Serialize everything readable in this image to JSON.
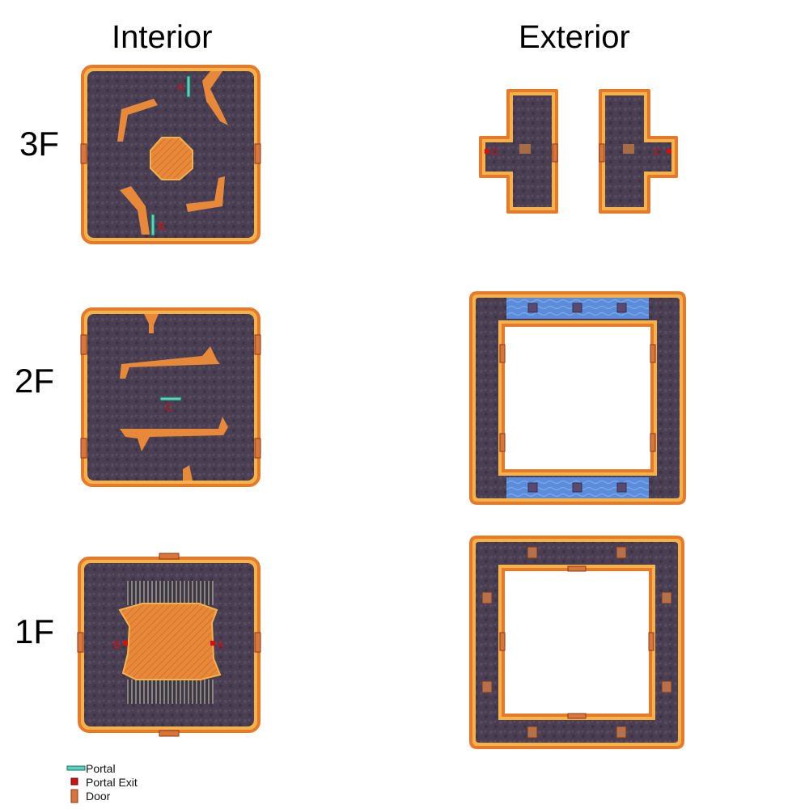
{
  "columns": {
    "interior": "Interior",
    "exterior": "Exterior"
  },
  "floors": {
    "f3": "3F",
    "f2": "2F",
    "f1": "1F"
  },
  "markers": {
    "f3_interior": [
      "A",
      "B"
    ],
    "f3_exterior": [
      "C",
      "C"
    ],
    "f2_interior": [
      "C"
    ],
    "f1_interior": [
      "B",
      "A"
    ]
  },
  "legend": [
    {
      "icon": "portal-icon",
      "label": "Portal"
    },
    {
      "icon": "portal-exit-icon",
      "label": "Portal Exit"
    },
    {
      "icon": "door-icon",
      "label": "Door"
    }
  ],
  "colors": {
    "floor": "#4a3e52",
    "lava": "#e8893a",
    "lava_glow": "#f5b24a",
    "portal": "#5ad3b8",
    "portal_exit": "#d40f0f",
    "door": "#d9743a",
    "water": "#5b8ddb"
  }
}
